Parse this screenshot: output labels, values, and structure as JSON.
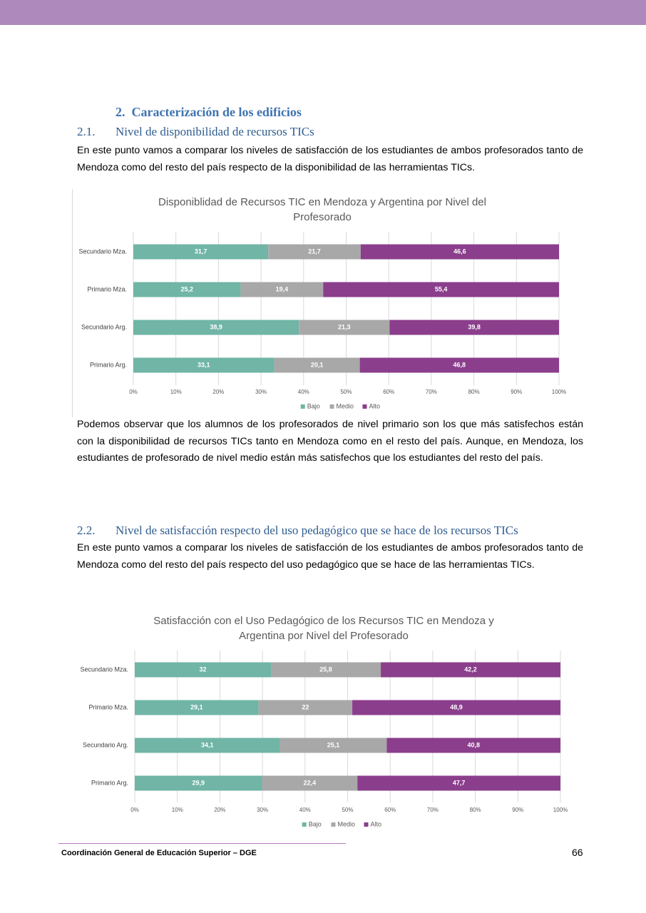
{
  "section": {
    "number": "2.",
    "title": "Caracterización de los edificios"
  },
  "subsections": [
    {
      "number": "2.1.",
      "title": "Nivel de disponibilidad de recursos TICs",
      "intro": "En este punto vamos a comparar los niveles de satisfacción de los estudiantes de ambos profesorados tanto de Mendoza como del resto del país respecto de la disponibilidad de las herramientas TICs.",
      "after": "Podemos observar que los alumnos de los profesorados de nivel primario son los que más satisfechos están con la disponibilidad de recursos TICs tanto en Mendoza como en el resto del país. Aunque, en Mendoza, los estudiantes de profesorado de nivel medio están más satisfechos que los estudiantes del resto del país."
    },
    {
      "number": "2.2.",
      "title": "Nivel de satisfacción respecto del uso pedagógico que se hace de los recursos TICs",
      "intro": "En este punto vamos a comparar los niveles de satisfacción de los estudiantes de ambos profesorados tanto de Mendoza como del resto del país respecto del uso pedagógico que se hace de las herramientas TICs."
    }
  ],
  "chart_data": [
    {
      "type": "bar",
      "orientation": "horizontal",
      "stacked": true,
      "grid": true,
      "legend": "bottom",
      "title": "Disponiblidad de Recursos TIC en Mendoza y Argentina por Nivel del Profesorado",
      "categories": [
        "Secundario Mza.",
        "Primario Mza.",
        "Secundario Arg.",
        "Primario Arg."
      ],
      "series": [
        {
          "name": "Bajo",
          "color": "#70b5a6",
          "values": [
            31.7,
            25.2,
            38.9,
            33.1
          ],
          "value_labels": [
            "31,7",
            "25,2",
            "38,9",
            "33,1"
          ]
        },
        {
          "name": "Medio",
          "color": "#a9a8a8",
          "values": [
            21.7,
            19.4,
            21.3,
            20.1
          ],
          "value_labels": [
            "21,7",
            "19,4",
            "21,3",
            "20,1"
          ]
        },
        {
          "name": "Alto",
          "color": "#8b3e8c",
          "values": [
            46.6,
            55.4,
            39.8,
            46.8
          ],
          "value_labels": [
            "46,6",
            "55,4",
            "39,8",
            "46,8"
          ]
        }
      ],
      "xlim": [
        0,
        100
      ],
      "xticks": [
        {
          "value": 0,
          "label": "0%"
        },
        {
          "value": 10,
          "label": "10%"
        },
        {
          "value": 20,
          "label": "20%"
        },
        {
          "value": 30,
          "label": "30%"
        },
        {
          "value": 40,
          "label": "40%"
        },
        {
          "value": 50,
          "label": "50%"
        },
        {
          "value": 60,
          "label": "60%"
        },
        {
          "value": 70,
          "label": "70%"
        },
        {
          "value": 80,
          "label": "80%"
        },
        {
          "value": 90,
          "label": "90%"
        },
        {
          "value": 100,
          "label": "100%"
        }
      ]
    },
    {
      "type": "bar",
      "orientation": "horizontal",
      "stacked": true,
      "grid": true,
      "legend": "bottom",
      "title": "Satisfacción con el Uso Pedagógico de los Recursos TIC en Mendoza y Argentina por Nivel del Profesorado",
      "categories": [
        "Secundario Mza.",
        "Primario Mza.",
        "Secundario Arg.",
        "Primario Arg."
      ],
      "series": [
        {
          "name": "Bajo",
          "color": "#70b5a6",
          "values": [
            32,
            29.1,
            34.1,
            29.9
          ],
          "value_labels": [
            "32",
            "29,1",
            "34,1",
            "29,9"
          ]
        },
        {
          "name": "Medio",
          "color": "#a9a8a8",
          "values": [
            25.8,
            22,
            25.1,
            22.4
          ],
          "value_labels": [
            "25,8",
            "22",
            "25,1",
            "22,4"
          ]
        },
        {
          "name": "Alto",
          "color": "#8b3e8c",
          "values": [
            42.2,
            48.9,
            40.8,
            47.7
          ],
          "value_labels": [
            "42,2",
            "48,9",
            "40,8",
            "47,7"
          ]
        }
      ],
      "xlim": [
        0,
        100
      ],
      "xticks": [
        {
          "value": 0,
          "label": "0%"
        },
        {
          "value": 10,
          "label": "10%"
        },
        {
          "value": 20,
          "label": "20%"
        },
        {
          "value": 30,
          "label": "30%"
        },
        {
          "value": 40,
          "label": "40%"
        },
        {
          "value": 50,
          "label": "50%"
        },
        {
          "value": 60,
          "label": "60%"
        },
        {
          "value": 70,
          "label": "70%"
        },
        {
          "value": 80,
          "label": "80%"
        },
        {
          "value": 90,
          "label": "90%"
        },
        {
          "value": 100,
          "label": "100%"
        }
      ]
    }
  ],
  "footer": {
    "text": "Coordinación General de Educación Superior – DGE",
    "page": "66"
  }
}
